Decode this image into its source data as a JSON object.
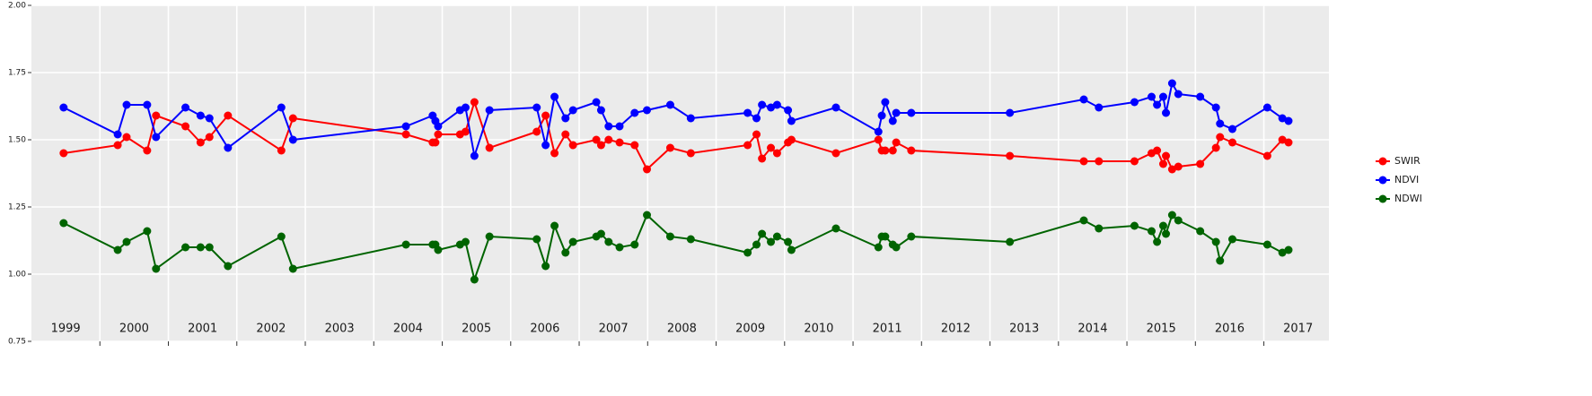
{
  "chart_data": {
    "type": "line",
    "x": [
      1999.47,
      2000.26,
      2000.39,
      2000.69,
      2000.82,
      2001.25,
      2001.47,
      2001.6,
      2001.87,
      2002.65,
      2002.82,
      2004.47,
      2004.86,
      2004.9,
      2004.94,
      2005.26,
      2005.34,
      2005.47,
      2005.69,
      2006.38,
      2006.51,
      2006.64,
      2006.8,
      2006.91,
      2007.25,
      2007.32,
      2007.43,
      2007.59,
      2007.81,
      2007.99,
      2008.33,
      2008.63,
      2009.46,
      2009.59,
      2009.67,
      2009.8,
      2009.89,
      2010.05,
      2010.1,
      2010.75,
      2011.37,
      2011.42,
      2011.47,
      2011.58,
      2011.63,
      2011.85,
      2013.29,
      2014.37,
      2014.59,
      2015.11,
      2015.36,
      2015.44,
      2015.53,
      2015.57,
      2015.66,
      2015.75,
      2016.07,
      2016.3,
      2016.36,
      2016.54,
      2017.05,
      2017.27,
      2017.36
    ],
    "series": [
      {
        "name": "SWIR",
        "color": "#ff0000",
        "values": [
          1.45,
          1.48,
          1.51,
          1.46,
          1.59,
          1.55,
          1.49,
          1.51,
          1.59,
          1.46,
          1.58,
          1.52,
          1.49,
          1.49,
          1.52,
          1.52,
          1.53,
          1.64,
          1.47,
          1.53,
          1.59,
          1.45,
          1.52,
          1.48,
          1.5,
          1.48,
          1.5,
          1.49,
          1.48,
          1.39,
          1.47,
          1.45,
          1.48,
          1.52,
          1.43,
          1.47,
          1.45,
          1.49,
          1.5,
          1.45,
          1.5,
          1.46,
          1.46,
          1.46,
          1.49,
          1.46,
          1.44,
          1.42,
          1.42,
          1.42,
          1.45,
          1.46,
          1.41,
          1.44,
          1.39,
          1.4,
          1.41,
          1.47,
          1.51,
          1.49,
          1.44,
          1.5,
          1.49
        ]
      },
      {
        "name": "NDVI",
        "color": "#0000ff",
        "values": [
          1.62,
          1.52,
          1.63,
          1.63,
          1.51,
          1.62,
          1.59,
          1.58,
          1.47,
          1.62,
          1.5,
          1.55,
          1.59,
          1.57,
          1.55,
          1.61,
          1.62,
          1.44,
          1.61,
          1.62,
          1.48,
          1.66,
          1.58,
          1.61,
          1.64,
          1.61,
          1.55,
          1.55,
          1.6,
          1.61,
          1.63,
          1.58,
          1.6,
          1.58,
          1.63,
          1.62,
          1.63,
          1.61,
          1.57,
          1.62,
          1.53,
          1.59,
          1.64,
          1.57,
          1.6,
          1.6,
          1.6,
          1.65,
          1.62,
          1.64,
          1.66,
          1.63,
          1.66,
          1.6,
          1.71,
          1.67,
          1.66,
          1.62,
          1.56,
          1.54,
          1.62,
          1.58,
          1.57
        ]
      },
      {
        "name": "NDWI",
        "color": "#006400",
        "values": [
          1.19,
          1.09,
          1.12,
          1.16,
          1.02,
          1.1,
          1.1,
          1.1,
          1.03,
          1.14,
          1.02,
          1.11,
          1.11,
          1.11,
          1.09,
          1.11,
          1.12,
          0.98,
          1.14,
          1.13,
          1.03,
          1.18,
          1.08,
          1.12,
          1.14,
          1.15,
          1.12,
          1.1,
          1.11,
          1.22,
          1.14,
          1.13,
          1.08,
          1.11,
          1.15,
          1.12,
          1.14,
          1.12,
          1.09,
          1.17,
          1.1,
          1.14,
          1.14,
          1.11,
          1.1,
          1.14,
          1.12,
          1.2,
          1.17,
          1.18,
          1.16,
          1.12,
          1.18,
          1.15,
          1.22,
          1.2,
          1.16,
          1.12,
          1.05,
          1.13,
          1.11,
          1.08,
          1.09
        ]
      }
    ],
    "xlim": [
      1999,
      2017.95
    ],
    "xgrid": [
      2000,
      2001,
      2002,
      2003,
      2004,
      2005,
      2006,
      2007,
      2008,
      2009,
      2010,
      2011,
      2012,
      2013,
      2014,
      2015,
      2016,
      2017
    ],
    "xticks": [
      {
        "value": 1999.5,
        "label": "1999"
      },
      {
        "value": 2000.5,
        "label": "2000"
      },
      {
        "value": 2001.5,
        "label": "2001"
      },
      {
        "value": 2002.5,
        "label": "2002"
      },
      {
        "value": 2003.5,
        "label": "2003"
      },
      {
        "value": 2004.5,
        "label": "2004"
      },
      {
        "value": 2005.5,
        "label": "2005"
      },
      {
        "value": 2006.5,
        "label": "2006"
      },
      {
        "value": 2007.5,
        "label": "2007"
      },
      {
        "value": 2008.5,
        "label": "2008"
      },
      {
        "value": 2009.5,
        "label": "2009"
      },
      {
        "value": 2010.5,
        "label": "2010"
      },
      {
        "value": 2011.5,
        "label": "2011"
      },
      {
        "value": 2012.5,
        "label": "2012"
      },
      {
        "value": 2013.5,
        "label": "2013"
      },
      {
        "value": 2014.5,
        "label": "2014"
      },
      {
        "value": 2015.5,
        "label": "2015"
      },
      {
        "value": 2016.5,
        "label": "2016"
      },
      {
        "value": 2017.5,
        "label": "2017"
      }
    ],
    "ylim": [
      0.75,
      2.0
    ],
    "yticks": [
      {
        "value": 0.75,
        "label": "0.75"
      },
      {
        "value": 1.0,
        "label": "1.00"
      },
      1.25,
      {
        "value": 1.5,
        "label": "1.50"
      },
      1.75,
      {
        "value": 2.0,
        "label": "2.00"
      }
    ],
    "grid": true,
    "legend": "right"
  }
}
